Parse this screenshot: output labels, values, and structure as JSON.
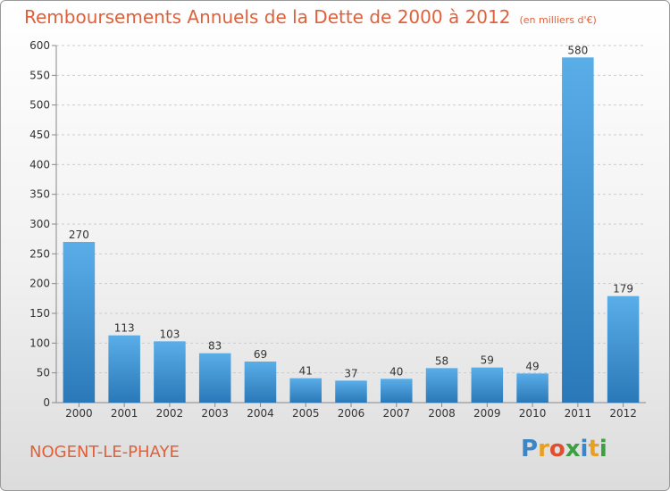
{
  "title": "Remboursements Annuels de la Dette de 2000 à 2012",
  "unit": "(en milliers d'€)",
  "location": "NOGENT-LE-PHAYE",
  "logo": {
    "text": "Proxiti",
    "letters": [
      {
        "ch": "P",
        "color": "#3a86c8"
      },
      {
        "ch": "r",
        "color": "#e8a020"
      },
      {
        "ch": "o",
        "color": "#e05030"
      },
      {
        "ch": "x",
        "color": "#3aa040"
      },
      {
        "ch": "i",
        "color": "#3a86c8"
      },
      {
        "ch": "t",
        "color": "#e8a020"
      },
      {
        "ch": "i",
        "color": "#3aa040"
      }
    ]
  },
  "chart_data": {
    "type": "bar",
    "title": "Remboursements Annuels de la Dette de 2000 à 2012",
    "categories": [
      "2000",
      "2001",
      "2002",
      "2003",
      "2004",
      "2005",
      "2006",
      "2007",
      "2008",
      "2009",
      "2010",
      "2011",
      "2012"
    ],
    "values": [
      270,
      113,
      103,
      83,
      69,
      41,
      37,
      40,
      58,
      59,
      49,
      580,
      179
    ],
    "ylim": [
      0,
      600
    ],
    "yticks": [
      0,
      50,
      100,
      150,
      200,
      250,
      300,
      350,
      400,
      450,
      500,
      550,
      600
    ],
    "xlabel": "",
    "ylabel": "",
    "grid": true,
    "colors": {
      "bar_top": "#5aaee8",
      "bar_bottom": "#2a78b8",
      "grid": "#cccccc",
      "axis": "#888888",
      "text": "#333333"
    }
  }
}
